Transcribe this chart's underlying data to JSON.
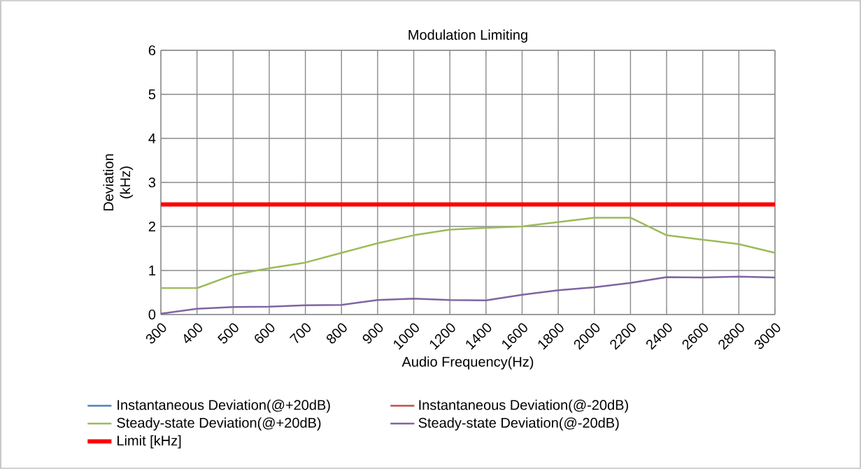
{
  "chart_data": {
    "type": "line",
    "title": "Modulation Limiting",
    "xlabel": "Audio Frequency(Hz)",
    "ylabel": "Deviation (kHz)",
    "categories": [
      "300",
      "400",
      "500",
      "600",
      "700",
      "800",
      "900",
      "1000",
      "1200",
      "1400",
      "1600",
      "1800",
      "2000",
      "2200",
      "2400",
      "2600",
      "2800",
      "3000"
    ],
    "series": [
      {
        "name": "Instantaneous Deviation(@+20dB)",
        "color": "#4f81bd",
        "values": [
          null,
          null,
          null,
          null,
          null,
          null,
          null,
          null,
          null,
          null,
          null,
          null,
          null,
          null,
          null,
          null,
          null,
          null
        ]
      },
      {
        "name": "Instantaneous Deviation(@-20dB)",
        "color": "#c0504d",
        "values": [
          null,
          null,
          null,
          null,
          null,
          null,
          null,
          null,
          null,
          null,
          null,
          null,
          null,
          null,
          null,
          null,
          null,
          null
        ]
      },
      {
        "name": "Steady-state Deviation(@+20dB)",
        "color": "#9bbb59",
        "values": [
          0.6,
          0.6,
          0.9,
          1.05,
          1.18,
          1.4,
          1.62,
          1.8,
          1.93,
          1.97,
          2.0,
          2.1,
          2.2,
          2.2,
          1.8,
          1.7,
          1.6,
          1.4
        ]
      },
      {
        "name": "Steady-state Deviation(@-20dB)",
        "color": "#8064a2",
        "values": [
          0.02,
          0.13,
          0.17,
          0.18,
          0.21,
          0.22,
          0.33,
          0.36,
          0.33,
          0.32,
          0.45,
          0.55,
          0.62,
          0.72,
          0.85,
          0.84,
          0.86,
          0.84
        ]
      },
      {
        "name": "Limit [kHz]",
        "color": "#ff0000",
        "values": [
          2.5,
          2.5,
          2.5,
          2.5,
          2.5,
          2.5,
          2.5,
          2.5,
          2.5,
          2.5,
          2.5,
          2.5,
          2.5,
          2.5,
          2.5,
          2.5,
          2.5,
          2.5
        ]
      }
    ],
    "ylim": [
      0,
      6
    ],
    "yticks": [
      0,
      1,
      2,
      3,
      4,
      5,
      6
    ],
    "grid": true,
    "legend": "bottom",
    "marker": "none",
    "line_style": "solid"
  }
}
